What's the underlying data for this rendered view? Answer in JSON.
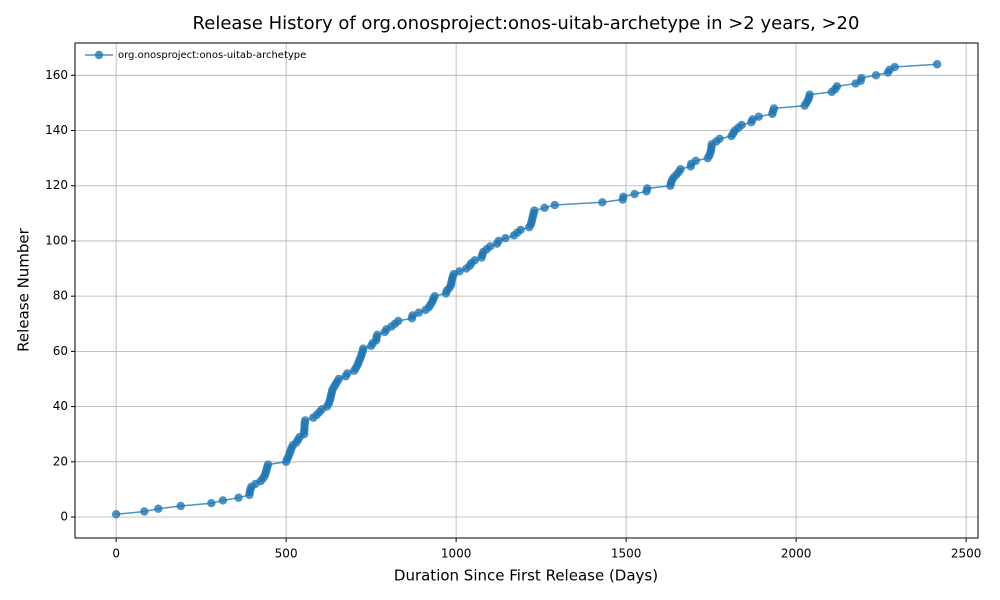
{
  "chart_data": {
    "type": "line",
    "title": "Release History of org.onosproject:onos-uitab-archetype in >2 years, >20",
    "x_label": "Duration Since First Release (Days)",
    "y_label": "Release Number",
    "legend": "upper left",
    "grid": true,
    "markers": true,
    "xlim": [
      -121,
      2535
    ],
    "ylim": [
      -7.6,
      171.7
    ],
    "xticks": [
      0,
      500,
      1000,
      1500,
      2000,
      2500
    ],
    "yticks": [
      0,
      20,
      40,
      60,
      80,
      100,
      120,
      140,
      160
    ],
    "x": [
      0,
      83,
      124,
      190,
      280,
      314,
      360,
      392,
      393,
      395,
      398,
      410,
      425,
      432,
      437,
      440,
      442,
      444,
      447,
      500,
      503,
      507,
      510,
      513,
      516,
      520,
      530,
      535,
      540,
      553,
      553,
      554,
      554,
      555,
      556,
      580,
      590,
      598,
      605,
      620,
      625,
      628,
      630,
      632,
      634,
      636,
      640,
      645,
      650,
      655,
      675,
      680,
      700,
      705,
      710,
      713,
      716,
      720,
      722,
      725,
      727,
      750,
      755,
      765,
      766,
      768,
      790,
      795,
      810,
      820,
      830,
      870,
      872,
      890,
      910,
      920,
      925,
      930,
      933,
      937,
      970,
      973,
      980,
      985,
      986,
      988,
      990,
      993,
      1010,
      1030,
      1040,
      1045,
      1055,
      1075,
      1077,
      1080,
      1090,
      1100,
      1120,
      1125,
      1145,
      1170,
      1180,
      1190,
      1215,
      1220,
      1222,
      1224,
      1226,
      1228,
      1230,
      1260,
      1290,
      1430,
      1490,
      1492,
      1525,
      1560,
      1562,
      1630,
      1632,
      1635,
      1640,
      1648,
      1655,
      1660,
      1690,
      1692,
      1705,
      1740,
      1745,
      1748,
      1750,
      1751,
      1752,
      1765,
      1775,
      1810,
      1815,
      1820,
      1830,
      1840,
      1868,
      1872,
      1890,
      1930,
      1932,
      1935,
      2025,
      2030,
      2035,
      2038,
      2040,
      2105,
      2115,
      2120,
      2175,
      2190,
      2192,
      2235,
      2270,
      2275,
      2290,
      2415
    ],
    "series": [
      {
        "name": "org.onosproject:onos-uitab-archetype",
        "color": "#1f77b4",
        "values": [
          1,
          2,
          3,
          4,
          5,
          6,
          7,
          8,
          9,
          10,
          11,
          12,
          13,
          14,
          15,
          16,
          17,
          18,
          19,
          20,
          21,
          22,
          23,
          24,
          25,
          26,
          27,
          28,
          29,
          30,
          31,
          32,
          33,
          34,
          35,
          36,
          37,
          38,
          39,
          40,
          41,
          42,
          43,
          44,
          45,
          46,
          47,
          48,
          49,
          50,
          51,
          52,
          53,
          54,
          55,
          56,
          57,
          58,
          59,
          60,
          61,
          62,
          63,
          64,
          65,
          66,
          67,
          68,
          69,
          70,
          71,
          72,
          73,
          74,
          75,
          76,
          77,
          78,
          79,
          80,
          81,
          82,
          83,
          84,
          85,
          86,
          87,
          88,
          89,
          90,
          91,
          92,
          93,
          94,
          95,
          96,
          97,
          98,
          99,
          100,
          101,
          102,
          103,
          104,
          105,
          106,
          107,
          108,
          109,
          110,
          111,
          112,
          113,
          114,
          115,
          116,
          117,
          118,
          119,
          120,
          121,
          122,
          123,
          124,
          125,
          126,
          127,
          128,
          129,
          130,
          131,
          132,
          133,
          134,
          135,
          136,
          137,
          138,
          139,
          140,
          141,
          142,
          143,
          144,
          145,
          146,
          147,
          148,
          149,
          150,
          151,
          152,
          153,
          154,
          155,
          156,
          157,
          158,
          159,
          160,
          161,
          162,
          163,
          164
        ]
      }
    ]
  }
}
